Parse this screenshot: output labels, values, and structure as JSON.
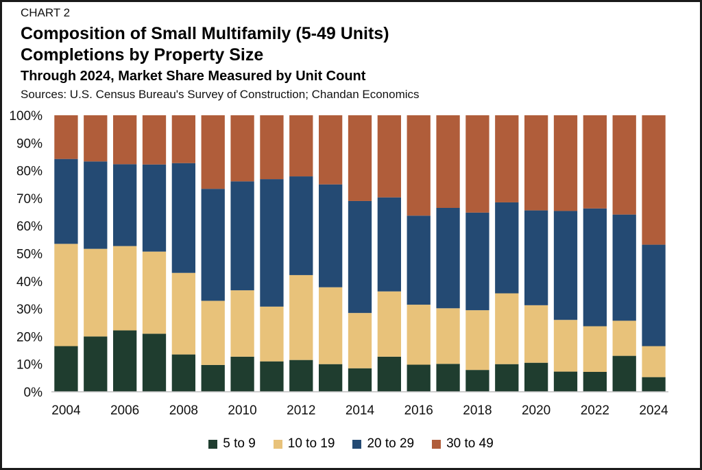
{
  "header": {
    "chart_label": "CHART 2",
    "title_line1": "Composition of Small Multifamily (5-49 Units)",
    "title_line2": "Completions by Property Size",
    "subtitle": "Through 2024, Market Share Measured by Unit Count",
    "sources": "Sources: U.S. Census Bureau's Survey of Construction; Chandan Economics"
  },
  "chart_data": {
    "type": "bar",
    "stacked": true,
    "title": "Composition of Small Multifamily (5-49 Units) Completions by Property Size",
    "subtitle": "Through 2024, Market Share Measured by Unit Count",
    "xlabel": "",
    "ylabel": "",
    "ylim": [
      0,
      100
    ],
    "y_ticks": [
      "0%",
      "10%",
      "20%",
      "30%",
      "40%",
      "50%",
      "60%",
      "70%",
      "80%",
      "90%",
      "100%"
    ],
    "categories": [
      "2004",
      "2005",
      "2006",
      "2007",
      "2008",
      "2009",
      "2010",
      "2011",
      "2012",
      "2013",
      "2014",
      "2015",
      "2016",
      "2017",
      "2018",
      "2019",
      "2020",
      "2021",
      "2022",
      "2023",
      "2024"
    ],
    "x_tick_labels": [
      "2004",
      "",
      "2006",
      "",
      "2008",
      "",
      "2010",
      "",
      "2012",
      "",
      "2014",
      "",
      "2016",
      "",
      "2018",
      "",
      "2020",
      "",
      "2022",
      "",
      "2024"
    ],
    "series": [
      {
        "name": "5 to 9",
        "color": "#1f3d2f",
        "values": [
          16.5,
          20,
          22.2,
          21,
          13.5,
          9.7,
          12.7,
          11,
          11.5,
          10,
          8.5,
          12.7,
          9.8,
          10.1,
          7.9,
          10,
          10.5,
          7.3,
          7.2,
          13,
          5.3
        ]
      },
      {
        "name": "10 to 19",
        "color": "#e8c27a",
        "values": [
          37,
          31.7,
          30.5,
          29.7,
          29.5,
          23.2,
          24,
          19.8,
          30.7,
          27.8,
          20,
          23.6,
          21.7,
          20.1,
          21.6,
          25.6,
          20.8,
          18.7,
          16.5,
          12.7,
          11.2
        ]
      },
      {
        "name": "20 to 29",
        "color": "#244a73",
        "values": [
          30.7,
          31.6,
          29.6,
          31.5,
          39.7,
          40.5,
          39.4,
          46.1,
          35.7,
          37.2,
          40.5,
          34,
          32.2,
          36.3,
          35.3,
          32.9,
          34.3,
          39.4,
          42.6,
          38.4,
          36.7
        ]
      },
      {
        "name": "30 to 49",
        "color": "#b05d3a",
        "values": [
          15.8,
          16.7,
          17.7,
          17.8,
          17.3,
          26.6,
          23.9,
          23.1,
          22.1,
          25,
          31,
          29.7,
          36.3,
          33.5,
          35.2,
          31.5,
          34.4,
          34.6,
          33.7,
          35.9,
          46.8
        ]
      }
    ],
    "legend_position": "bottom",
    "grid": false
  }
}
